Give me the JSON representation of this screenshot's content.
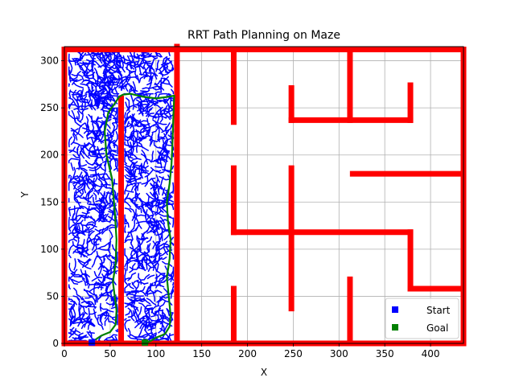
{
  "chart_data": {
    "type": "scatter",
    "title": "RRT Path Planning on Maze",
    "xlabel": "X",
    "ylabel": "Y",
    "xlim": [
      0,
      436
    ],
    "ylim": [
      0,
      315
    ],
    "grid": true,
    "xticks": [
      0,
      50,
      100,
      150,
      200,
      250,
      300,
      350,
      400
    ],
    "yticks": [
      0,
      50,
      100,
      150,
      200,
      250,
      300
    ],
    "legend": {
      "placement": "lower-right",
      "entries": [
        {
          "label": "Start",
          "color": "#0000ff"
        },
        {
          "label": "Goal",
          "color": "#008000"
        }
      ]
    },
    "colors": {
      "walls": "#ff0000",
      "tree": "#0000ff",
      "path": "#008000"
    },
    "walls": [
      {
        "x": [
          0,
          436
        ],
        "y": [
          0,
          0
        ]
      },
      {
        "x": [
          0,
          0
        ],
        "y": [
          0,
          312
        ]
      },
      {
        "x": [
          0,
          436
        ],
        "y": [
          312,
          312
        ]
      },
      {
        "x": [
          436,
          436
        ],
        "y": [
          0,
          312
        ]
      },
      {
        "x": [
          62,
          62
        ],
        "y": [
          0,
          260
        ]
      },
      {
        "x": [
          123,
          123
        ],
        "y": [
          0,
          315
        ]
      },
      {
        "x": [
          185,
          185
        ],
        "y": [
          0,
          58
        ]
      },
      {
        "x": [
          185,
          185
        ],
        "y": [
          118,
          186
        ]
      },
      {
        "x": [
          185,
          185
        ],
        "y": [
          235,
          312
        ]
      },
      {
        "x": [
          185,
          378
        ],
        "y": [
          118,
          118
        ]
      },
      {
        "x": [
          248,
          248
        ],
        "y": [
          37,
          186
        ]
      },
      {
        "x": [
          248,
          248
        ],
        "y": [
          237,
          271
        ]
      },
      {
        "x": [
          248,
          378
        ],
        "y": [
          237,
          237
        ]
      },
      {
        "x": [
          312,
          312
        ],
        "y": [
          0,
          68
        ]
      },
      {
        "x": [
          312,
          312
        ],
        "y": [
          237,
          312
        ]
      },
      {
        "x": [
          315,
          436
        ],
        "y": [
          180,
          180
        ]
      },
      {
        "x": [
          378,
          378
        ],
        "y": [
          237,
          274
        ]
      },
      {
        "x": [
          378,
          378
        ],
        "y": [
          58,
          118
        ]
      },
      {
        "x": [
          378,
          436
        ],
        "y": [
          58,
          58
        ]
      }
    ],
    "goal_path": {
      "x": [
        34,
        40,
        50,
        56,
        57,
        55,
        53,
        56,
        57,
        55,
        52,
        46,
        44,
        48,
        56,
        60,
        64,
        72,
        85,
        100,
        115,
        120,
        119,
        118,
        117,
        115,
        112,
        113,
        116,
        115,
        112,
        114,
        116,
        115,
        110,
        100,
        95,
        90
      ],
      "y": [
        4,
        8,
        12,
        20,
        35,
        50,
        65,
        85,
        110,
        140,
        175,
        200,
        225,
        245,
        256,
        262,
        264,
        265,
        262,
        260,
        262,
        263,
        240,
        210,
        190,
        170,
        150,
        130,
        110,
        90,
        70,
        50,
        30,
        18,
        10,
        6,
        3,
        1
      ]
    },
    "start_marker": {
      "x": 30,
      "y": 1
    },
    "goal_marker": {
      "x": 88,
      "y": 1
    }
  }
}
